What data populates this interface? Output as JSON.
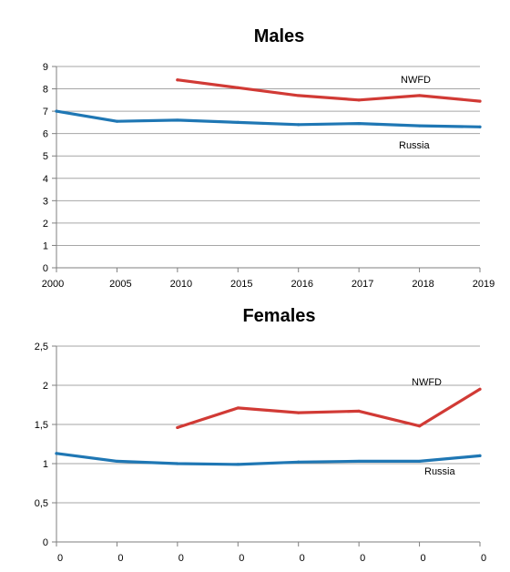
{
  "chart_data": [
    {
      "type": "line",
      "title": "Males",
      "xlabel": "",
      "ylabel": "",
      "categories": [
        "2000",
        "2005",
        "2010",
        "2015",
        "2016",
        "2017",
        "2018",
        "2019"
      ],
      "yticks": [
        "0",
        "1",
        "2",
        "3",
        "4",
        "5",
        "6",
        "7",
        "8",
        "9"
      ],
      "ylim": [
        0,
        9
      ],
      "grid": true,
      "legend": "none",
      "series": [
        {
          "name": "NWFD",
          "color": "#d13a35",
          "values": [
            null,
            null,
            8.4,
            8.05,
            7.7,
            7.5,
            7.7,
            7.45
          ]
        },
        {
          "name": "Russia",
          "color": "#1f77b4",
          "values": [
            7.0,
            6.55,
            6.6,
            6.5,
            6.4,
            6.45,
            6.35,
            6.3
          ]
        }
      ]
    },
    {
      "type": "line",
      "title": "Females",
      "xlabel": "",
      "ylabel": "",
      "categories": [
        "0",
        "0",
        "0",
        "0",
        "0",
        "0",
        "0",
        "0"
      ],
      "yticks": [
        "0",
        "0,5",
        "1",
        "1,5",
        "2",
        "2,5"
      ],
      "ylim": [
        0,
        2.5
      ],
      "grid": true,
      "legend": "none",
      "series": [
        {
          "name": "NWFD",
          "color": "#d13a35",
          "values": [
            null,
            null,
            1.46,
            1.71,
            1.65,
            1.67,
            1.48,
            1.95
          ]
        },
        {
          "name": "Russia",
          "color": "#1f77b4",
          "values": [
            1.13,
            1.03,
            1.0,
            0.99,
            1.02,
            1.03,
            1.03,
            1.1
          ]
        }
      ]
    }
  ]
}
